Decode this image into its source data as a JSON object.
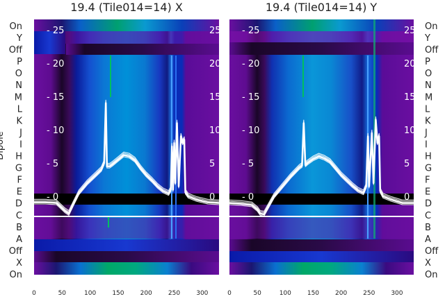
{
  "chart_data": [
    {
      "type": "heatmap",
      "title": "19.4 (Tile014=14) X",
      "ylabel": "Dipole",
      "row_labels_left": [
        "On",
        "Y",
        "Off",
        "P",
        "O",
        "N",
        "M",
        "L",
        "K",
        "J",
        "I",
        "H",
        "G",
        "F",
        "E",
        "D",
        "C",
        "B",
        "A",
        "Off",
        "X",
        "On"
      ],
      "x_ticks": [
        0,
        50,
        100,
        150,
        200,
        250,
        300
      ],
      "xlim": [
        0,
        330
      ],
      "overlay_ticks": [
        25,
        20,
        15,
        10,
        5,
        0
      ],
      "overlay_ylim": [
        -3.5,
        28
      ],
      "overlay_series": [
        {
          "x": [
            0,
            20,
            40,
            55,
            62,
            70,
            80,
            95,
            110,
            120,
            125,
            128,
            130,
            135,
            140,
            150,
            160,
            170,
            180,
            190,
            200,
            210,
            220,
            230,
            240,
            244,
            246,
            248,
            250,
            252,
            255,
            258,
            262,
            265,
            268,
            270,
            275,
            290,
            310,
            330
          ],
          "y": [
            -0.9,
            -0.9,
            -1.0,
            -2.2,
            -2.6,
            -1.2,
            0.5,
            2.0,
            3.2,
            4.0,
            5.0,
            14.0,
            4.5,
            4.5,
            4.8,
            5.5,
            6.2,
            6.0,
            5.4,
            4.2,
            3.2,
            2.4,
            1.5,
            0.8,
            0.4,
            1.0,
            7.5,
            1.0,
            8.0,
            2.0,
            11.0,
            1.5,
            9.0,
            8.0,
            8.5,
            0.6,
            0.0,
            -0.5,
            -0.9,
            -1.0
          ]
        }
      ],
      "bands": [
        {
          "row": "On",
          "color": "#0a7fd0"
        },
        {
          "row": "Y",
          "color": "#6a0fa0"
        },
        {
          "row": "Off",
          "color": "#6a0fa0"
        },
        {
          "row": "P",
          "color": "#1c3fd8"
        },
        {
          "row": "C",
          "color": "#000000"
        },
        {
          "row": "B",
          "color": "#6a0fa0"
        },
        {
          "row": "A",
          "color": "#6a0fa0"
        },
        {
          "row": "Off",
          "color": "#0030d0"
        },
        {
          "row": "X",
          "color": "#1a3ad8"
        },
        {
          "row": "On",
          "color": "#0a8fd0"
        }
      ]
    },
    {
      "type": "heatmap",
      "title": "19.4 (Tile014=14) Y",
      "row_labels_right": [
        "On",
        "Y",
        "Off",
        "P",
        "O",
        "N",
        "M",
        "L",
        "K",
        "J",
        "I",
        "H",
        "G",
        "F",
        "E",
        "D",
        "C",
        "B",
        "A",
        "Off",
        "X",
        "On"
      ],
      "x_ticks": [
        0,
        50,
        100,
        150,
        200,
        250,
        300
      ],
      "xlim": [
        0,
        330
      ],
      "overlay_ticks": [
        25,
        20,
        15,
        10,
        5,
        0
      ],
      "overlay_ylim": [
        -3.5,
        28
      ],
      "overlay_series": [
        {
          "x": [
            0,
            20,
            40,
            50,
            55,
            62,
            70,
            80,
            95,
            110,
            125,
            130,
            133,
            136,
            140,
            150,
            160,
            170,
            180,
            190,
            200,
            210,
            220,
            230,
            240,
            245,
            248,
            250,
            255,
            258,
            262,
            265,
            268,
            270,
            275,
            290,
            310,
            330
          ],
          "y": [
            -1.0,
            -1.1,
            -1.3,
            -2.0,
            -2.6,
            -2.7,
            -1.5,
            0.0,
            1.5,
            3.0,
            4.3,
            4.6,
            11.0,
            4.7,
            5.0,
            5.6,
            6.0,
            5.7,
            5.2,
            4.2,
            3.2,
            2.4,
            1.6,
            0.9,
            0.5,
            1.5,
            9.0,
            1.5,
            9.5,
            2.0,
            11.5,
            8.0,
            9.0,
            0.8,
            0.0,
            -0.5,
            -1.0,
            -1.0
          ]
        }
      ],
      "bands": [
        {
          "row": "On",
          "color": "#0a8fd0"
        },
        {
          "row": "Y",
          "color": "#7a10a8"
        },
        {
          "row": "Off",
          "color": "#2a0040"
        },
        {
          "row": "C",
          "color": "#000000"
        },
        {
          "row": "B",
          "color": "#6a0fa0"
        },
        {
          "row": "A",
          "color": "#6a0fa0"
        },
        {
          "row": "Off",
          "color": "#3a0060"
        },
        {
          "row": "X",
          "color": "#2a2ad0"
        },
        {
          "row": "On",
          "color": "#0a8fd0"
        }
      ]
    }
  ]
}
